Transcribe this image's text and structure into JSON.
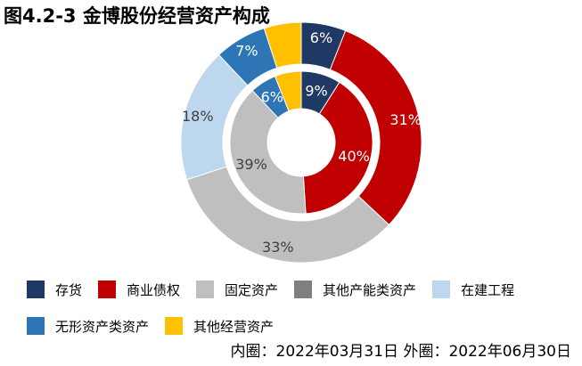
{
  "title": "图4.2-3 金博股份经营资产构成",
  "footnote": "内圈：2022年03月31日 外圈：2022年06月30日",
  "chart_data": {
    "type": "pie",
    "variant": "nested-donut",
    "title": "图4.2-3 金博股份经营资产构成",
    "categories": [
      "存货",
      "商业债权",
      "固定资产",
      "其他产能类资产",
      "在建工程",
      "无形资产类资产",
      "其他经营资产"
    ],
    "colors": [
      "#1f3864",
      "#c00000",
      "#bfbfbf",
      "#7f7f7f",
      "#bdd7ee",
      "#2e75b6",
      "#ffc000"
    ],
    "series": [
      {
        "ring": "inner",
        "date": "2022年03月31日",
        "values": [
          9,
          40,
          39,
          0,
          0,
          6,
          6
        ],
        "labels": [
          "9%",
          "40%",
          "39%",
          "",
          "",
          "6%",
          ""
        ]
      },
      {
        "ring": "outer",
        "date": "2022年06月30日",
        "values": [
          6,
          31,
          33,
          0,
          18,
          7,
          5
        ],
        "labels": [
          "6%",
          "31%",
          "33%",
          "",
          "18%",
          "7%",
          ""
        ]
      }
    ],
    "legend_position": "bottom"
  }
}
